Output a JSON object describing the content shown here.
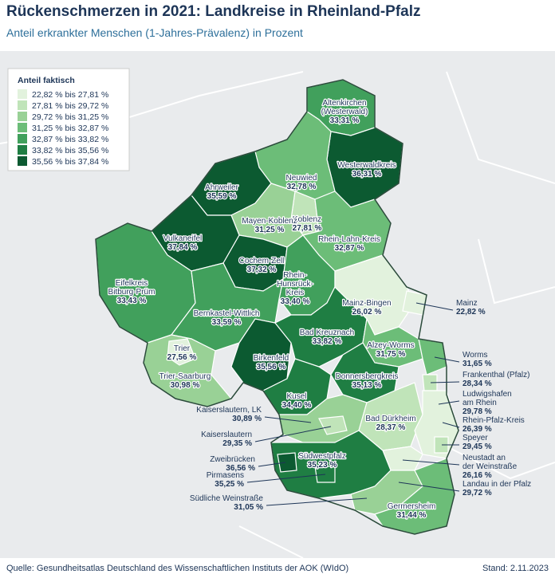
{
  "header": {
    "title": "Rückenschmerzen in 2021: Landkreise in Rheinland-Pfalz",
    "subtitle": "Anteil erkrankter Menschen (1-Jahres-Prävalenz) in Prozent"
  },
  "legend": {
    "title": "Anteil faktisch",
    "items": [
      {
        "label": "22,82 % bis 27,81 %",
        "color": "#e2f2dd"
      },
      {
        "label": "27,81 % bis 29,72 %",
        "color": "#c0e4b9"
      },
      {
        "label": "29,72 % bis 31,25 %",
        "color": "#99d196"
      },
      {
        "label": "31,25 % bis 32,87 %",
        "color": "#6cbd78"
      },
      {
        "label": "32,87 % bis 33,82 %",
        "color": "#41a05c"
      },
      {
        "label": "33,82 % bis 35,56 %",
        "color": "#1f7e43"
      },
      {
        "label": "35,56 % bis 37,84 %",
        "color": "#0c5a31"
      }
    ]
  },
  "regions": [
    {
      "name": [
        "Altenkirchen",
        "(Westerwald)"
      ],
      "value": "33,31 %",
      "color": "#41a05c"
    },
    {
      "name": [
        "Westerwaldkreis"
      ],
      "value": "36,31 %",
      "color": "#0c5a31"
    },
    {
      "name": [
        "Neuwied"
      ],
      "value": "32,78 %",
      "color": "#6cbd78"
    },
    {
      "name": [
        "Ahrweiler"
      ],
      "value": "35,59 %",
      "color": "#0c5a31"
    },
    {
      "name": [
        "Koblenz"
      ],
      "value": "27,81 %",
      "color": "#c0e4b9"
    },
    {
      "name": [
        "Mayen-Koblenz"
      ],
      "value": "31,25 %",
      "color": "#99d196"
    },
    {
      "name": [
        "Rhein-Lahn-Kreis"
      ],
      "value": "32,87 %",
      "color": "#6cbd78"
    },
    {
      "name": [
        "Vulkaneifel"
      ],
      "value": "37,84 %",
      "color": "#0c5a31"
    },
    {
      "name": [
        "Eifelkreis",
        "Bitburg-Prüm"
      ],
      "value": "33,43 %",
      "color": "#41a05c"
    },
    {
      "name": [
        "Cochem-Zell"
      ],
      "value": "37,32 %",
      "color": "#0c5a31"
    },
    {
      "name": [
        "Rhein-",
        "Hunsrück-",
        "Kreis"
      ],
      "value": "33,40 %",
      "color": "#41a05c"
    },
    {
      "name": [
        "Bernkastel-Wittlich"
      ],
      "value": "33,59 %",
      "color": "#41a05c"
    },
    {
      "name": [
        "Trier-Saarburg"
      ],
      "value": "30,98 %",
      "color": "#99d196"
    },
    {
      "name": [
        "Trier"
      ],
      "value": "27,56 %",
      "color": "#e2f2dd"
    },
    {
      "name": [
        "Birkenfeld"
      ],
      "value": "35,56 %",
      "color": "#0c5a31"
    },
    {
      "name": [
        "Bad Kreuznach"
      ],
      "value": "33,82 %",
      "color": "#1f7e43"
    },
    {
      "name": [
        "Mainz-Bingen"
      ],
      "value": "26,02 %",
      "color": "#e2f2dd"
    },
    {
      "name": [
        "Mainz"
      ],
      "value": "22,82 %",
      "color": "#e2f2dd"
    },
    {
      "name": [
        "Alzey-Worms"
      ],
      "value": "31,75 %",
      "color": "#6cbd78"
    },
    {
      "name": [
        "Worms"
      ],
      "value": "31,65 %",
      "color": "#6cbd78"
    },
    {
      "name": [
        "Donnersbergkreis"
      ],
      "value": "35,13 %",
      "color": "#1f7e43"
    },
    {
      "name": [
        "Kusel"
      ],
      "value": "34,40 %",
      "color": "#1f7e43"
    },
    {
      "name": [
        "Kaiserslautern, LK"
      ],
      "value": "30,89 %",
      "color": "#99d196"
    },
    {
      "name": [
        "Kaiserslautern"
      ],
      "value": "29,35 %",
      "color": "#c0e4b9"
    },
    {
      "name": [
        "Bad Dürkheim"
      ],
      "value": "28,37 %",
      "color": "#c0e4b9"
    },
    {
      "name": [
        "Frankenthal (Pfalz)"
      ],
      "value": "28,34 %",
      "color": "#c0e4b9"
    },
    {
      "name": [
        "Ludwigshafen",
        "am Rhein"
      ],
      "value": "29,78 %",
      "color": "#99d196"
    },
    {
      "name": [
        "Rhein-Pfalz-Kreis"
      ],
      "value": "26,39 %",
      "color": "#e2f2dd"
    },
    {
      "name": [
        "Speyer"
      ],
      "value": "29,45 %",
      "color": "#c0e4b9"
    },
    {
      "name": [
        "Neustadt an",
        "der Weinstraße"
      ],
      "value": "26,16 %",
      "color": "#e2f2dd"
    },
    {
      "name": [
        "Südwestpfalz"
      ],
      "value": "35,23 %",
      "color": "#1f7e43"
    },
    {
      "name": [
        "Zweibrücken"
      ],
      "value": "36,56 %",
      "color": "#0c5a31"
    },
    {
      "name": [
        "Pirmasens"
      ],
      "value": "35,25 %",
      "color": "#1f7e43"
    },
    {
      "name": [
        "Landau in der Pfalz"
      ],
      "value": "29,72 %",
      "color": "#c0e4b9"
    },
    {
      "name": [
        "Südliche Weinstraße"
      ],
      "value": "31,05 %",
      "color": "#99d196"
    },
    {
      "name": [
        "Germersheim"
      ],
      "value": "31,44 %",
      "color": "#6cbd78"
    }
  ],
  "footer": {
    "source": "Quelle: Gesundheitsatlas Deutschland des Wissenschaftlichen Instituts der AOK (WIdO)",
    "date": "Stand: 2.11.2023"
  }
}
